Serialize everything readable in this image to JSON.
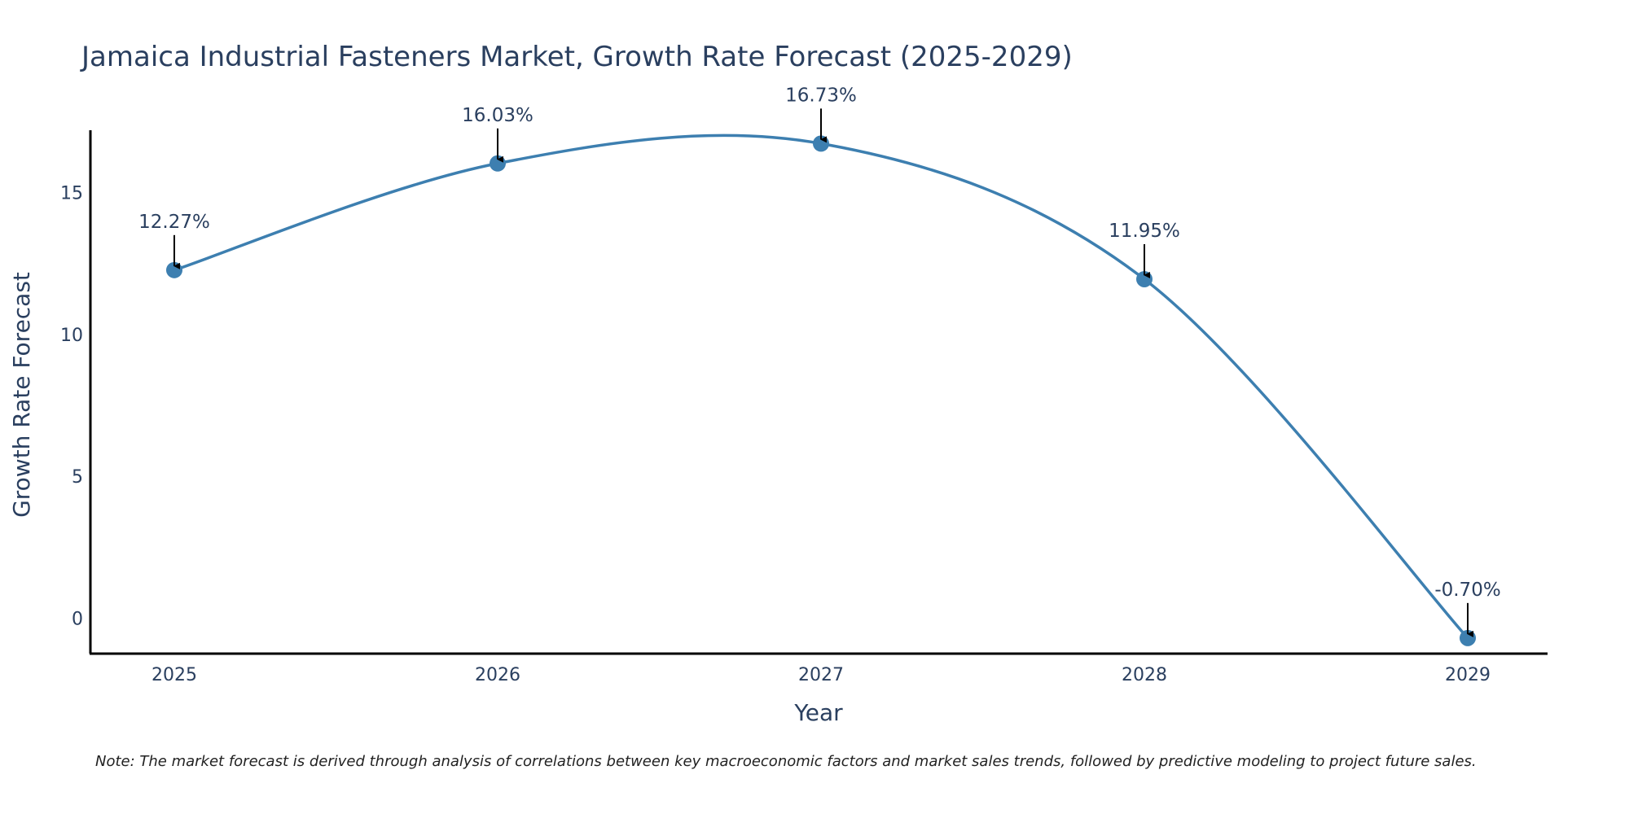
{
  "chart_data": {
    "type": "line",
    "title": "Jamaica Industrial Fasteners Market, Growth Rate Forecast (2025-2029)",
    "xlabel": "Year",
    "ylabel": "Growth Rate Forecast",
    "categories": [
      "2025",
      "2026",
      "2027",
      "2028",
      "2029"
    ],
    "values": [
      12.27,
      16.03,
      16.73,
      11.95,
      -0.7
    ],
    "data_labels": [
      "12.27%",
      "16.03%",
      "16.73%",
      "11.95%",
      "-0.70%"
    ],
    "y_ticks": [
      0,
      5,
      10,
      15
    ],
    "y_tick_labels": [
      "0",
      "5",
      "10",
      "15"
    ],
    "ylim": [
      -1.25,
      17.2
    ],
    "grid": false,
    "legend": "none",
    "line_shape": "smooth",
    "line_color": "#3d7fb0",
    "marker_color": "#3d7fb0",
    "note": "Note: The market forecast is derived through analysis of correlations between key macroeconomic factors and market sales trends, followed by predictive modeling to project future sales."
  }
}
